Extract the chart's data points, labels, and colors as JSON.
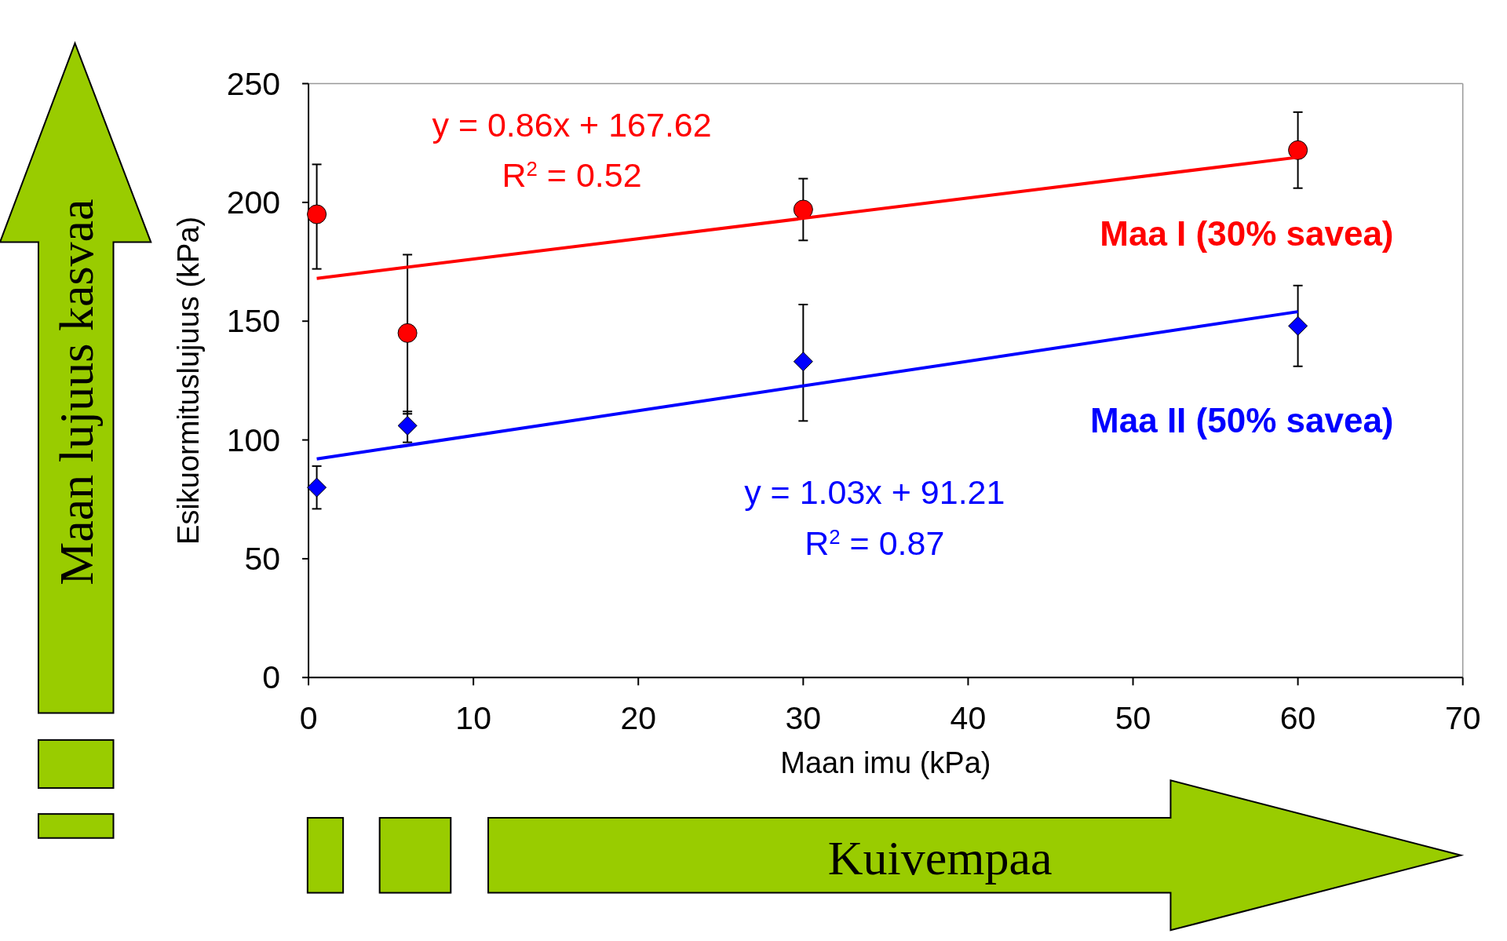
{
  "chart_data": {
    "type": "scatter",
    "xlabel": "Maan imu (kPa)",
    "ylabel": "Esikuormituslujuus (kPa)",
    "xlim": [
      0,
      70
    ],
    "xticks": [
      0,
      10,
      20,
      30,
      40,
      50,
      60,
      70
    ],
    "ylim": [
      0,
      250
    ],
    "yticks": [
      0,
      50,
      100,
      150,
      200,
      250
    ],
    "grid": false,
    "series": [
      {
        "name": "Maa I (30% savea)",
        "color": "#ff0000",
        "marker": "circle",
        "x": [
          0.5,
          6,
          30,
          60
        ],
        "values": [
          195,
          145,
          197,
          222
        ],
        "errors": [
          [
            172,
            216
          ],
          [
            111,
            178
          ],
          [
            184,
            210
          ],
          [
            206,
            238
          ]
        ]
      },
      {
        "name": "Maa II (50% savea)",
        "color": "#0000ff",
        "marker": "diamond",
        "x": [
          0.5,
          6,
          30,
          60
        ],
        "values": [
          80,
          106,
          133,
          148
        ],
        "errors": [
          [
            71,
            89
          ],
          [
            99,
            112
          ],
          [
            108,
            157
          ],
          [
            131,
            165
          ]
        ]
      },
      {
        "type": "line",
        "color": "#ff0000",
        "x": [
          0.5,
          60
        ],
        "values": [
          168,
          219
        ]
      },
      {
        "type": "line",
        "color": "#0000ff",
        "x": [
          0.5,
          60
        ],
        "values": [
          92,
          154
        ]
      }
    ],
    "annotations": [
      "y = 0.86x + 167.62",
      "R$^{2}$ = 0.52",
      "y = 1.03x + 91.21",
      "R$^{2}$ = 0.87",
      "Maan lujuus kasvaa",
      "Kuivempaa"
    ]
  }
}
